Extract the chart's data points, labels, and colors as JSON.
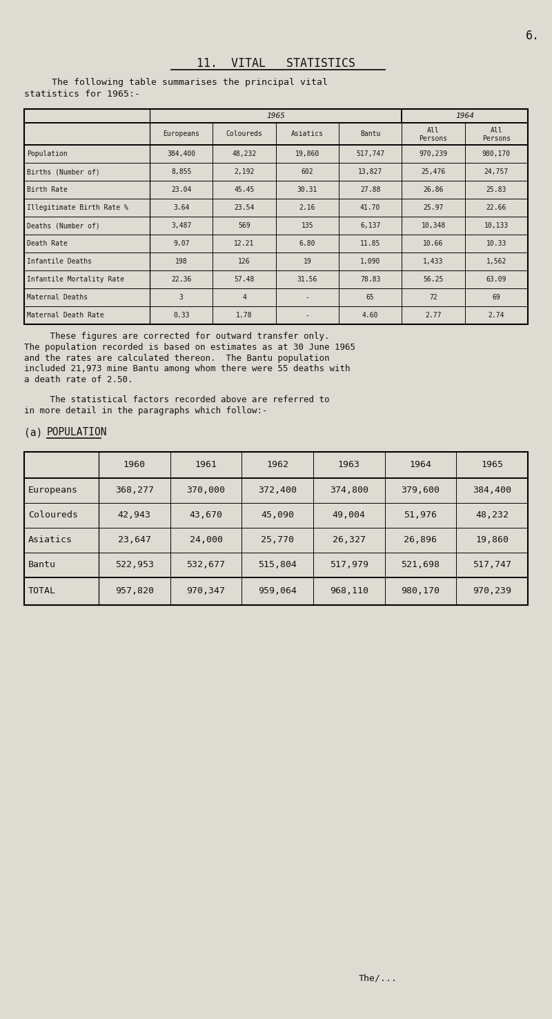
{
  "page_number": "6.",
  "title": "11.  VITAL   STATISTICS",
  "intro_text_line1": "     The following table summarises the principal vital",
  "intro_text_line2": "statistics for 1965:-",
  "table1_header_year1": "1965",
  "table1_header_year2": "1964",
  "table1_subheaders": [
    "Europeans",
    "Coloureds",
    "Asiatics",
    "Bantu",
    "All\nPersons",
    "All\nPersons"
  ],
  "table1_rows": [
    [
      "Population",
      "384,400",
      "48,232",
      "19,860",
      "517,747",
      "970,239",
      "980,170"
    ],
    [
      "Births (Number of)",
      "8,855",
      "2,192",
      "602",
      "13,827",
      "25,476",
      "24,757"
    ],
    [
      "Birth Rate",
      "23.04",
      "45.45",
      "30.31",
      "27.88",
      "26.86",
      "25.83"
    ],
    [
      "Illegitimate Birth Rate %",
      "3.64",
      "23.54",
      "2.16",
      "41.70",
      "25.97",
      "22.66"
    ],
    [
      "Deaths (Number of)",
      "3,487",
      "569",
      "135",
      "6,137",
      "10,348",
      "10,133"
    ],
    [
      "Death Rate",
      "9.07",
      "12.21",
      "6.80",
      "11.85",
      "10.66",
      "10.33"
    ],
    [
      "Infantile Deaths",
      "198",
      "126",
      "19",
      "1,090",
      "1,433",
      "1,562"
    ],
    [
      "Infantile Mortality Rate",
      "22.36",
      "57.48",
      "31.56",
      "78.83",
      "56.25",
      "63.09"
    ],
    [
      "Maternal Deaths",
      "3",
      "4",
      "-",
      "65",
      "72",
      "69"
    ],
    [
      "Maternal Death Rate",
      "0.33",
      "1.78",
      "-",
      "4.60",
      "2.77",
      "2.74"
    ]
  ],
  "footnote_lines": [
    "     These figures are corrected for outward transfer only.",
    "The population recorded is based on estimates as at 30 June 1965",
    "and the rates are calculated thereon.  The Bantu population",
    "included 21,973 mine Bantu among whom there were 55 deaths with",
    "a death rate of 2.50."
  ],
  "footnote2_lines": [
    "     The statistical factors recorded above are referred to",
    "in more detail in the paragraphs which follow:-"
  ],
  "section_a_label": "(a)",
  "section_a_title": "POPULATION",
  "table2_headers": [
    "",
    "1960",
    "1961",
    "1962",
    "1963",
    "1964",
    "1965"
  ],
  "table2_rows": [
    [
      "Europeans",
      "368,277",
      "370,000",
      "372,400",
      "374,800",
      "379,600",
      "384,400"
    ],
    [
      "Coloureds",
      "42,943",
      "43,670",
      "45,090",
      "49,004",
      "51,976",
      "48,232"
    ],
    [
      "Asiatics",
      "23,647",
      "24,000",
      "25,770",
      "26,327",
      "26,896",
      "19,860"
    ],
    [
      "Bantu",
      "522,953",
      "532,677",
      "515,804",
      "517,979",
      "521,698",
      "517,747"
    ]
  ],
  "table2_total_row": [
    "TOTAL",
    "957,820",
    "970,347",
    "959,064",
    "968,110",
    "980,170",
    "970,239"
  ],
  "footer_text": "The/...",
  "bg_color": "#dddbd2",
  "text_color": "#111111"
}
